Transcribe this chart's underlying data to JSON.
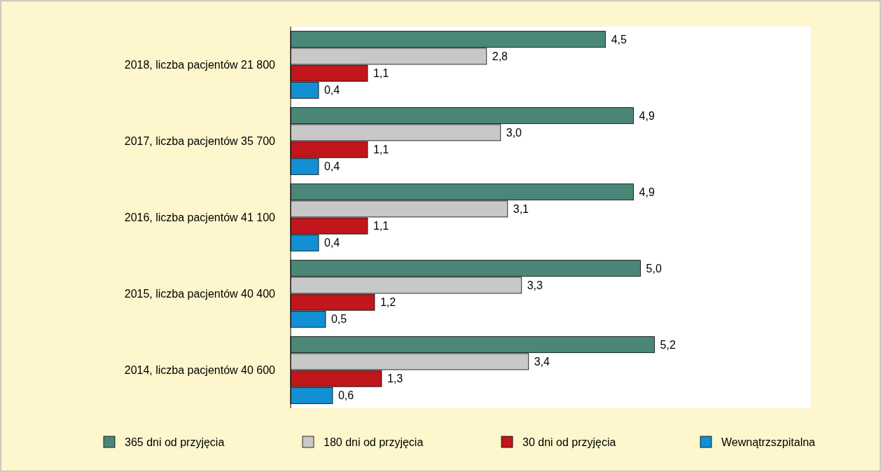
{
  "chart_data": {
    "type": "bar",
    "orientation": "horizontal",
    "categories": [
      "2018, liczba pacjentów 21 800",
      "2017, liczba pacjentów 35 700",
      "2016, liczba pacjentów 41 100",
      "2015, liczba pacjentów 40 400",
      "2014, liczba pacjentów 40 600"
    ],
    "series": [
      {
        "name": "365 dni od przyjęcia",
        "color": "#4a8778",
        "values": [
          4.5,
          4.9,
          4.9,
          5.0,
          5.2
        ],
        "value_labels": [
          "4,5",
          "4,9",
          "4,9",
          "5,0",
          "5,2"
        ]
      },
      {
        "name": "180 dni od przyjęcia",
        "color": "#c8c8c8",
        "values": [
          2.8,
          3.0,
          3.1,
          3.3,
          3.4
        ],
        "value_labels": [
          "2,8",
          "3,0",
          "3,1",
          "3,3",
          "3,4"
        ]
      },
      {
        "name": "30 dni od przyjęcia",
        "color": "#c0161c",
        "values": [
          1.1,
          1.1,
          1.1,
          1.2,
          1.3
        ],
        "value_labels": [
          "1,1",
          "1,1",
          "1,1",
          "1,2",
          "1,3"
        ]
      },
      {
        "name": "Wewnątrzszpitalna",
        "color": "#138fd3",
        "values": [
          0.4,
          0.4,
          0.4,
          0.5,
          0.6
        ],
        "value_labels": [
          "0,4",
          "0,4",
          "0,4",
          "0,5",
          "0,6"
        ]
      }
    ],
    "legend": "bottom"
  }
}
